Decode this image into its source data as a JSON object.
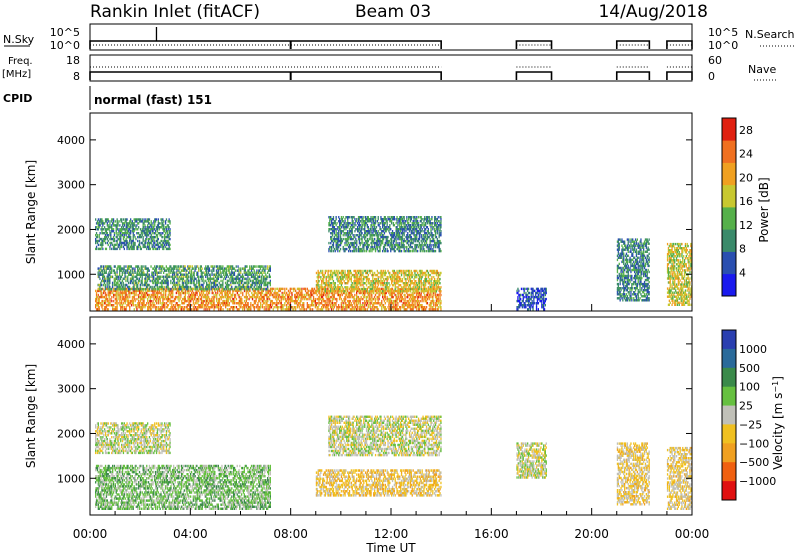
{
  "header": {
    "station": "Rankin Inlet (fitACF)",
    "beam": "Beam 03",
    "date": "14/Aug/2018"
  },
  "top_panels": {
    "nsky_label": "N.Sky",
    "nsky_ticks": [
      "10^5",
      "10^0"
    ],
    "nsearch_label": "N.Search",
    "nsearch_ticks": [
      "10^5",
      "10^0"
    ],
    "freq_label_1": "Freq.",
    "freq_label_2": "[MHz]",
    "freq_ticks": [
      "18",
      "8"
    ],
    "nave_label": "Nave",
    "nave_ticks": [
      "60",
      "0"
    ],
    "cpid_label": "CPID",
    "cpid_value": "normal (fast) 151"
  },
  "colors": {
    "power": [
      "#1a1aee",
      "#2a4fb0",
      "#3a8a6a",
      "#55b04a",
      "#c8c830",
      "#f0a020",
      "#f07020",
      "#e02010"
    ],
    "velocity": [
      "#2a3fb0",
      "#2a6a9a",
      "#3a8a4a",
      "#66c040",
      "#c0c0b8",
      "#f0c020",
      "#f0a020",
      "#f06010",
      "#e01010"
    ]
  },
  "chart_data": [
    {
      "type": "heatmap",
      "ylabel": "Slant Range [km]",
      "yticks": [
        "1000",
        "2000",
        "3000",
        "4000"
      ],
      "ylim": [
        180,
        4600
      ],
      "xlim_hours": [
        0,
        24
      ],
      "colorbar": {
        "label": "Power [dB]",
        "ticks": [
          "4",
          "8",
          "12",
          "16",
          "20",
          "24",
          "28"
        ],
        "range": [
          0,
          30
        ]
      },
      "echo_intervals_hours": [
        [
          0.0,
          14.0
        ],
        [
          17.0,
          18.4
        ],
        [
          21.0,
          22.3
        ],
        [
          23.0,
          24.0
        ]
      ],
      "echo_bands": [
        {
          "t": [
            0.2,
            3.2
          ],
          "range_km": [
            1550,
            2250
          ],
          "level": 10
        },
        {
          "t": [
            0.2,
            14.0
          ],
          "range_km": [
            200,
            700
          ],
          "level": 22
        },
        {
          "t": [
            0.3,
            7.2
          ],
          "range_km": [
            650,
            1200
          ],
          "level": 11
        },
        {
          "t": [
            9.0,
            14.0
          ],
          "range_km": [
            600,
            1100
          ],
          "level": 18
        },
        {
          "t": [
            9.5,
            14.0
          ],
          "range_km": [
            1500,
            2300
          ],
          "level": 9
        },
        {
          "t": [
            17.0,
            18.2
          ],
          "range_km": [
            200,
            700
          ],
          "level": 5
        },
        {
          "t": [
            21.0,
            22.3
          ],
          "range_km": [
            400,
            1800
          ],
          "level": 9
        },
        {
          "t": [
            23.0,
            24.0
          ],
          "range_km": [
            300,
            1700
          ],
          "level": 17
        }
      ]
    },
    {
      "type": "heatmap",
      "ylabel": "Slant Range [km]",
      "yticks": [
        "1000",
        "2000",
        "3000",
        "4000"
      ],
      "ylim": [
        180,
        4600
      ],
      "xlim_hours": [
        0,
        24
      ],
      "colorbar": {
        "label": "Velocity [m s^-1]",
        "ticks": [
          "1000",
          "500",
          "100",
          "25",
          "−25",
          "−100",
          "−500",
          "−1000"
        ],
        "range": [
          -1000,
          1000
        ]
      },
      "echo_bands": [
        {
          "t": [
            0.2,
            3.2
          ],
          "range_km": [
            1550,
            2250
          ],
          "level": 0
        },
        {
          "t": [
            0.2,
            7.2
          ],
          "range_km": [
            300,
            1300
          ],
          "level": 200
        },
        {
          "t": [
            9.0,
            14.0
          ],
          "range_km": [
            600,
            1200
          ],
          "level": -200
        },
        {
          "t": [
            9.5,
            14.0
          ],
          "range_km": [
            1500,
            2400
          ],
          "level": 0
        },
        {
          "t": [
            17.0,
            18.2
          ],
          "range_km": [
            1000,
            1800
          ],
          "level": 0
        },
        {
          "t": [
            21.0,
            22.3
          ],
          "range_km": [
            400,
            1800
          ],
          "level": -150
        },
        {
          "t": [
            23.0,
            24.0
          ],
          "range_km": [
            300,
            1700
          ],
          "level": -150
        }
      ]
    }
  ],
  "time_axis": {
    "ticks": [
      "00:00",
      "04:00",
      "08:00",
      "12:00",
      "16:00",
      "20:00",
      "00:00"
    ],
    "label": "Time UT"
  }
}
